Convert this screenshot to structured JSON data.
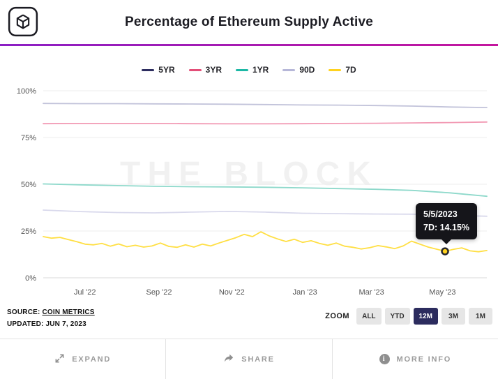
{
  "header": {
    "title": "Percentage of Ethereum Supply Active"
  },
  "watermark": "THE BLOCK",
  "chart_data": {
    "type": "line",
    "title": "Percentage of Ethereum Supply Active",
    "xlabel": "",
    "ylabel": "",
    "ylim": [
      0,
      100
    ],
    "grid": "horizontal",
    "legend_position": "top",
    "x_ticks": [
      "Jul '22",
      "Sep '22",
      "Nov '22",
      "Jan '23",
      "Mar '23",
      "May '23"
    ],
    "y_ticks": [
      "0%",
      "25%",
      "50%",
      "75%",
      "100%"
    ],
    "y_tick_values": [
      0,
      25,
      50,
      75,
      100
    ],
    "series": [
      {
        "name": "5YR",
        "legend_color": "#2d2d5f",
        "line_color": "#c2c3da",
        "values": [
          93.2,
          93.1,
          93.1,
          93.0,
          92.9,
          92.8,
          92.6,
          92.4,
          92.3,
          92.1,
          91.8,
          91.3,
          91.0
        ]
      },
      {
        "name": "3YR",
        "legend_color": "#e34e78",
        "line_color": "#f29ab4",
        "values": [
          82.4,
          82.5,
          82.5,
          82.5,
          82.4,
          82.3,
          82.3,
          82.4,
          82.5,
          82.6,
          82.8,
          83.0,
          83.3
        ]
      },
      {
        "name": "1YR",
        "legend_color": "#1db8a5",
        "line_color": "#8ed9cb",
        "values": [
          50.2,
          49.7,
          49.3,
          48.9,
          48.7,
          48.6,
          48.4,
          48.1,
          47.7,
          47.3,
          46.7,
          45.4,
          43.6
        ]
      },
      {
        "name": "90D",
        "legend_color": "#b6b7d8",
        "line_color": "#d9d9ec",
        "values": [
          36.2,
          35.4,
          34.9,
          34.7,
          35.1,
          35.5,
          35.1,
          34.5,
          34.3,
          34.1,
          34.0,
          33.4,
          32.9
        ]
      },
      {
        "name": "7D",
        "legend_color": "#ffd21f",
        "line_color": "#ffdf43",
        "values": [
          22.0,
          21.2,
          21.6,
          20.4,
          19.3,
          18.0,
          17.6,
          18.4,
          16.9,
          18.1,
          16.6,
          17.4,
          16.4,
          17.0,
          18.6,
          16.8,
          16.3,
          17.6,
          16.4,
          18.0,
          17.0,
          18.6,
          20.0,
          21.4,
          23.2,
          22.0,
          24.6,
          22.4,
          20.8,
          19.4,
          20.6,
          18.9,
          19.8,
          18.4,
          17.4,
          18.6,
          16.9,
          16.3,
          15.4,
          16.1,
          17.2,
          16.5,
          15.6,
          17.0,
          19.6,
          18.0,
          16.4,
          15.3,
          14.15,
          15.2,
          16.0,
          14.4,
          13.9,
          14.6
        ]
      }
    ],
    "tooltip": {
      "date": "5/5/2023",
      "text": "7D: 14.15%",
      "series": "7D",
      "value": 14.15,
      "x_fraction": 0.9057
    }
  },
  "source": {
    "source_label": "SOURCE:",
    "source_name": "COIN METRICS",
    "updated": "UPDATED: JUN 7, 2023"
  },
  "zoom": {
    "label": "ZOOM",
    "options": [
      "ALL",
      "YTD",
      "12M",
      "3M",
      "1M"
    ],
    "active": "12M"
  },
  "footer": {
    "expand": "EXPAND",
    "share": "SHARE",
    "more_info": "MORE INFO",
    "info_glyph": "i"
  },
  "colors": {
    "accent_gradient_start": "#8b1ec4",
    "accent_gradient_end": "#c4169e",
    "active_zoom_bg": "#2c2c5e",
    "tooltip_bg": "#15151a"
  }
}
